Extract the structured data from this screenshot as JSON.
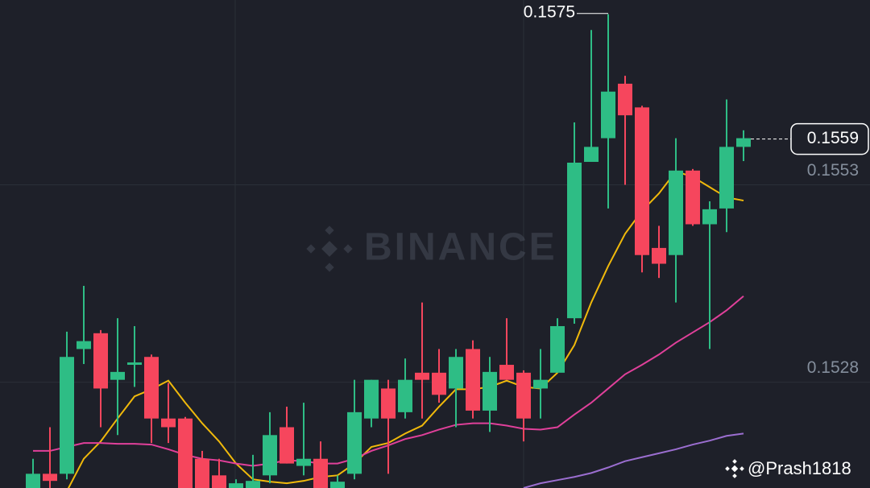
{
  "chart_data": {
    "type": "candlestick",
    "open": [
      0.15146,
      0.15164,
      0.15164,
      0.15322,
      0.15342,
      0.15283,
      0.15302,
      0.15312,
      0.15234,
      0.15234,
      0.15183,
      0.15162,
      0.15142,
      0.15146,
      0.15162,
      0.15223,
      0.15174,
      0.15183,
      0.15146,
      0.15164,
      0.15234,
      0.15272,
      0.15242,
      0.15292,
      0.15292,
      0.15272,
      0.15322,
      0.15244,
      0.15302,
      0.15292,
      0.15272,
      0.15292,
      0.15361,
      0.15559,
      0.15589,
      0.15658,
      0.15628,
      0.1545,
      0.15441,
      0.15548,
      0.1548,
      0.155,
      0.15578
    ],
    "high": [
      0.15183,
      0.15223,
      0.15344,
      0.15402,
      0.15346,
      0.15361,
      0.15351,
      0.15315,
      0.15279,
      0.15236,
      0.15193,
      0.15183,
      0.15157,
      0.15188,
      0.15242,
      0.15249,
      0.15254,
      0.15205,
      0.15162,
      0.15283,
      0.15283,
      0.15283,
      0.1531,
      0.15381,
      0.15322,
      0.15322,
      0.15333,
      0.15312,
      0.15361,
      0.15295,
      0.15322,
      0.15361,
      0.15609,
      0.15726,
      0.15746,
      0.15668,
      0.1563,
      0.15478,
      0.15589,
      0.1555,
      0.15509,
      0.15638,
      0.15599
    ],
    "low": [
      0.15142,
      0.15146,
      0.15157,
      0.15303,
      0.15223,
      0.15213,
      0.15274,
      0.15203,
      0.15203,
      0.15142,
      0.15137,
      0.15137,
      0.15137,
      0.15142,
      0.15152,
      0.15177,
      0.15162,
      0.15142,
      0.15142,
      0.15157,
      0.15223,
      0.15164,
      0.15234,
      0.15234,
      0.15254,
      0.15223,
      0.15234,
      0.15217,
      0.15283,
      0.15205,
      0.15234,
      0.15292,
      0.15354,
      0.15559,
      0.155,
      0.1553,
      0.15419,
      0.15412,
      0.15381,
      0.15478,
      0.15322,
      0.1547,
      0.1556
    ],
    "close": [
      0.15164,
      0.15155,
      0.15312,
      0.15332,
      0.15272,
      0.15293,
      0.15305,
      0.15234,
      0.15223,
      0.15146,
      0.15142,
      0.15142,
      0.15152,
      0.15155,
      0.15213,
      0.15177,
      0.15183,
      0.15146,
      0.15154,
      0.15242,
      0.15283,
      0.15234,
      0.15283,
      0.15283,
      0.15264,
      0.15312,
      0.15244,
      0.15293,
      0.15283,
      0.15234,
      0.15283,
      0.15351,
      0.15558,
      0.15578,
      0.15648,
      0.15618,
      0.15441,
      0.1543,
      0.15548,
      0.1548,
      0.15499,
      0.15578,
      0.15589
    ],
    "up_color": "#2ebd85",
    "down_color": "#f6465d",
    "lines": [
      {
        "color": "#f0b90b",
        "values": [
          null,
          null,
          0.15142,
          0.15183,
          0.15205,
          0.15234,
          0.15262,
          0.15271,
          0.15282,
          0.15254,
          0.15228,
          0.15205,
          0.15177,
          0.15157,
          0.15154,
          0.15152,
          0.15155,
          0.1516,
          0.15162,
          0.15177,
          0.15198,
          0.15203,
          0.15215,
          0.15225,
          0.15249,
          0.15271,
          0.15271,
          0.15274,
          0.15282,
          0.15274,
          0.15272,
          0.15292,
          0.15327,
          0.15381,
          0.15427,
          0.15468,
          0.15497,
          0.15519,
          0.15547,
          0.1554,
          0.15527,
          0.15514,
          0.1551
        ]
      },
      {
        "color": "#e0409a",
        "values": [
          0.15193,
          0.15193,
          0.15198,
          0.15203,
          0.15203,
          0.15202,
          0.15202,
          0.15201,
          0.15195,
          0.15188,
          0.15183,
          0.15181,
          0.15177,
          0.15174,
          0.15177,
          0.15181,
          0.1518,
          0.15177,
          0.15177,
          0.15183,
          0.15193,
          0.152,
          0.15208,
          0.15213,
          0.1522,
          0.15226,
          0.15228,
          0.15228,
          0.15225,
          0.15221,
          0.1522,
          0.15223,
          0.15239,
          0.15254,
          0.15272,
          0.1529,
          0.15302,
          0.15315,
          0.1533,
          0.15343,
          0.15356,
          0.15371,
          0.15389
        ]
      },
      {
        "color": "#9b6ed0",
        "values": [
          null,
          null,
          null,
          null,
          null,
          null,
          null,
          null,
          null,
          null,
          null,
          null,
          null,
          null,
          null,
          null,
          null,
          null,
          null,
          null,
          null,
          null,
          null,
          null,
          null,
          null,
          null,
          null,
          null,
          0.15146,
          0.15152,
          0.15156,
          0.1516,
          0.15165,
          0.15172,
          0.1518,
          0.15185,
          0.1519,
          0.15195,
          0.15201,
          0.15206,
          0.15212,
          0.15215
        ]
      }
    ],
    "ylim": [
      0.15146,
      0.15764
    ],
    "yticks": [
      0.1553,
      0.1528
    ],
    "grid": true,
    "max_price": 0.1575,
    "last_price": 0.1559
  },
  "watermark": "BINANCE",
  "credit": "@Prash1818"
}
